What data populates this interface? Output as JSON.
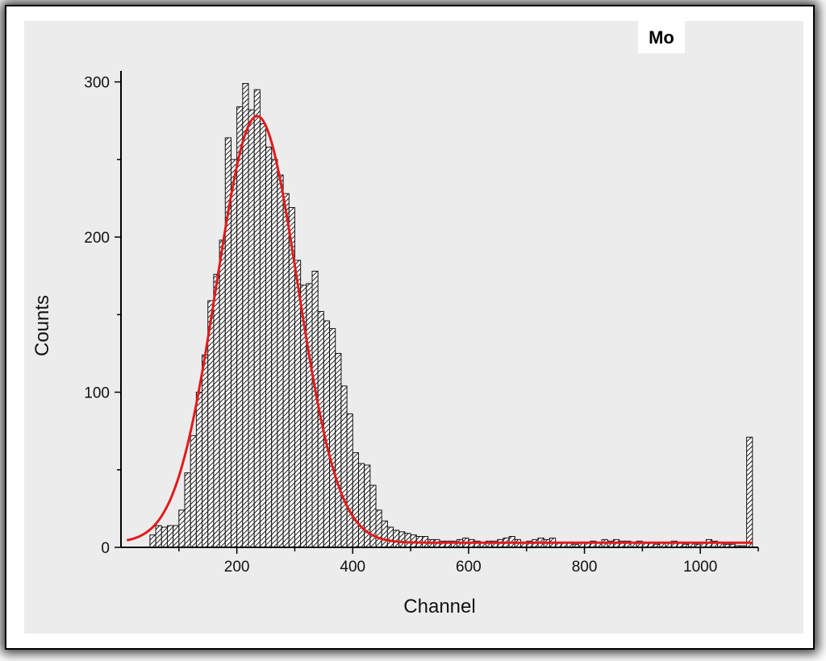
{
  "chart_data": {
    "type": "bar",
    "title": "",
    "label": "Mo",
    "xlabel": "Channel",
    "ylabel": "Counts",
    "xlim": [
      0,
      1100
    ],
    "ylim": [
      0,
      305
    ],
    "xticks": [
      200,
      400,
      600,
      800,
      1000
    ],
    "yticks": [
      0,
      100,
      200,
      300
    ],
    "bin_width": 10,
    "bins": [
      {
        "x": 0,
        "y": 0
      },
      {
        "x": 10,
        "y": 0
      },
      {
        "x": 20,
        "y": 0
      },
      {
        "x": 30,
        "y": 0
      },
      {
        "x": 40,
        "y": 0
      },
      {
        "x": 50,
        "y": 8
      },
      {
        "x": 60,
        "y": 14
      },
      {
        "x": 70,
        "y": 13
      },
      {
        "x": 80,
        "y": 14
      },
      {
        "x": 90,
        "y": 14
      },
      {
        "x": 100,
        "y": 24
      },
      {
        "x": 110,
        "y": 48
      },
      {
        "x": 120,
        "y": 72
      },
      {
        "x": 130,
        "y": 100
      },
      {
        "x": 140,
        "y": 124
      },
      {
        "x": 150,
        "y": 159
      },
      {
        "x": 160,
        "y": 176
      },
      {
        "x": 170,
        "y": 198
      },
      {
        "x": 180,
        "y": 264
      },
      {
        "x": 190,
        "y": 250
      },
      {
        "x": 200,
        "y": 284
      },
      {
        "x": 210,
        "y": 299
      },
      {
        "x": 220,
        "y": 282
      },
      {
        "x": 230,
        "y": 295
      },
      {
        "x": 240,
        "y": 273
      },
      {
        "x": 250,
        "y": 258
      },
      {
        "x": 260,
        "y": 250
      },
      {
        "x": 270,
        "y": 240
      },
      {
        "x": 280,
        "y": 228
      },
      {
        "x": 290,
        "y": 219
      },
      {
        "x": 300,
        "y": 185
      },
      {
        "x": 310,
        "y": 169
      },
      {
        "x": 320,
        "y": 170
      },
      {
        "x": 330,
        "y": 178
      },
      {
        "x": 340,
        "y": 152
      },
      {
        "x": 350,
        "y": 146
      },
      {
        "x": 360,
        "y": 141
      },
      {
        "x": 370,
        "y": 125
      },
      {
        "x": 380,
        "y": 104
      },
      {
        "x": 390,
        "y": 86
      },
      {
        "x": 400,
        "y": 61
      },
      {
        "x": 410,
        "y": 54
      },
      {
        "x": 420,
        "y": 53
      },
      {
        "x": 430,
        "y": 40
      },
      {
        "x": 440,
        "y": 24
      },
      {
        "x": 450,
        "y": 17
      },
      {
        "x": 460,
        "y": 13
      },
      {
        "x": 470,
        "y": 11
      },
      {
        "x": 480,
        "y": 10
      },
      {
        "x": 490,
        "y": 9
      },
      {
        "x": 500,
        "y": 8
      },
      {
        "x": 510,
        "y": 7
      },
      {
        "x": 520,
        "y": 7
      },
      {
        "x": 530,
        "y": 5
      },
      {
        "x": 540,
        "y": 5
      },
      {
        "x": 550,
        "y": 4
      },
      {
        "x": 560,
        "y": 4
      },
      {
        "x": 570,
        "y": 4
      },
      {
        "x": 580,
        "y": 5
      },
      {
        "x": 590,
        "y": 6
      },
      {
        "x": 600,
        "y": 5
      },
      {
        "x": 610,
        "y": 4
      },
      {
        "x": 620,
        "y": 3
      },
      {
        "x": 630,
        "y": 4
      },
      {
        "x": 640,
        "y": 4
      },
      {
        "x": 650,
        "y": 5
      },
      {
        "x": 660,
        "y": 6
      },
      {
        "x": 670,
        "y": 7
      },
      {
        "x": 680,
        "y": 5
      },
      {
        "x": 690,
        "y": 3
      },
      {
        "x": 700,
        "y": 4
      },
      {
        "x": 710,
        "y": 5
      },
      {
        "x": 720,
        "y": 6
      },
      {
        "x": 730,
        "y": 5
      },
      {
        "x": 740,
        "y": 6
      },
      {
        "x": 750,
        "y": 3
      },
      {
        "x": 760,
        "y": 3
      },
      {
        "x": 770,
        "y": 3
      },
      {
        "x": 780,
        "y": 2
      },
      {
        "x": 790,
        "y": 3
      },
      {
        "x": 800,
        "y": 3
      },
      {
        "x": 810,
        "y": 4
      },
      {
        "x": 820,
        "y": 3
      },
      {
        "x": 830,
        "y": 5
      },
      {
        "x": 840,
        "y": 4
      },
      {
        "x": 850,
        "y": 5
      },
      {
        "x": 860,
        "y": 4
      },
      {
        "x": 870,
        "y": 4
      },
      {
        "x": 880,
        "y": 3
      },
      {
        "x": 890,
        "y": 4
      },
      {
        "x": 900,
        "y": 3
      },
      {
        "x": 910,
        "y": 3
      },
      {
        "x": 920,
        "y": 2
      },
      {
        "x": 930,
        "y": 3
      },
      {
        "x": 940,
        "y": 3
      },
      {
        "x": 950,
        "y": 4
      },
      {
        "x": 960,
        "y": 3
      },
      {
        "x": 970,
        "y": 2
      },
      {
        "x": 980,
        "y": 3
      },
      {
        "x": 990,
        "y": 2
      },
      {
        "x": 1000,
        "y": 3
      },
      {
        "x": 1010,
        "y": 5
      },
      {
        "x": 1020,
        "y": 4
      },
      {
        "x": 1030,
        "y": 3
      },
      {
        "x": 1040,
        "y": 2
      },
      {
        "x": 1050,
        "y": 2
      },
      {
        "x": 1060,
        "y": 1
      },
      {
        "x": 1070,
        "y": 1
      },
      {
        "x": 1080,
        "y": 71
      }
    ],
    "fit": {
      "type": "gaussian",
      "baseline": 3,
      "amplitude": 275,
      "center": 235,
      "sigma": 70,
      "x_range": [
        10,
        1090
      ],
      "color": "#e31a1c"
    },
    "colors": {
      "bar_fill": "#ffffff",
      "bar_stroke": "#111111",
      "hatch": "#222222",
      "plot_background": "#ececec",
      "fit_line": "#e31a1c"
    },
    "grid": false,
    "legend_placement": "top-right"
  }
}
